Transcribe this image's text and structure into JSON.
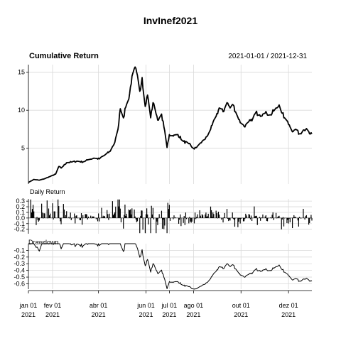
{
  "chart_data": {
    "type": "line",
    "title": "InvInef2021",
    "date_range": "2021-01-01 / 2021-12-31",
    "x_labels": [
      {
        "date": "2021-01-01",
        "label": "jan 01",
        "year": "2021"
      },
      {
        "date": "2021-02-01",
        "label": "fev 01",
        "year": "2021"
      },
      {
        "date": "2021-04-01",
        "label": "abr 01",
        "year": "2021"
      },
      {
        "date": "2021-06-01",
        "label": "jun 01",
        "year": "2021"
      },
      {
        "date": "2021-07-01",
        "label": "jul 01",
        "year": "2021"
      },
      {
        "date": "2021-08-01",
        "label": "ago 01",
        "year": "2021"
      },
      {
        "date": "2021-10-01",
        "label": "out 01",
        "year": "2021"
      },
      {
        "date": "2021-12-01",
        "label": "dez 01",
        "year": "2021"
      }
    ],
    "panels": [
      {
        "name": "Cumulative Return",
        "type": "line",
        "ylim": [
          0.3,
          16
        ],
        "yticks": [
          5,
          10,
          15
        ],
        "points": [
          [
            "2021-01-01",
            0.5
          ],
          [
            "2021-01-08",
            0.9
          ],
          [
            "2021-01-15",
            0.8
          ],
          [
            "2021-01-22",
            1.0
          ],
          [
            "2021-01-29",
            1.3
          ],
          [
            "2021-02-05",
            1.6
          ],
          [
            "2021-02-09",
            2.6
          ],
          [
            "2021-02-12",
            2.4
          ],
          [
            "2021-02-19",
            3.1
          ],
          [
            "2021-02-26",
            3.2
          ],
          [
            "2021-03-05",
            3.3
          ],
          [
            "2021-03-12",
            3.2
          ],
          [
            "2021-03-19",
            3.5
          ],
          [
            "2021-03-26",
            3.7
          ],
          [
            "2021-04-02",
            3.6
          ],
          [
            "2021-04-09",
            4.1
          ],
          [
            "2021-04-16",
            4.6
          ],
          [
            "2021-04-22",
            5.8
          ],
          [
            "2021-04-26",
            7.5
          ],
          [
            "2021-04-29",
            10.2
          ],
          [
            "2021-05-03",
            9.0
          ],
          [
            "2021-05-06",
            10.4
          ],
          [
            "2021-05-10",
            11.5
          ],
          [
            "2021-05-14",
            14.5
          ],
          [
            "2021-05-17",
            15.5
          ],
          [
            "2021-05-20",
            15.0
          ],
          [
            "2021-05-24",
            12.5
          ],
          [
            "2021-05-27",
            14.3
          ],
          [
            "2021-05-31",
            10.5
          ],
          [
            "2021-06-03",
            12.0
          ],
          [
            "2021-06-07",
            9.0
          ],
          [
            "2021-06-10",
            11.0
          ],
          [
            "2021-06-14",
            9.5
          ],
          [
            "2021-06-17",
            8.7
          ],
          [
            "2021-06-21",
            9.5
          ],
          [
            "2021-06-24",
            7.8
          ],
          [
            "2021-06-28",
            5.1
          ],
          [
            "2021-07-01",
            6.8
          ],
          [
            "2021-07-06",
            6.6
          ],
          [
            "2021-07-12",
            6.8
          ],
          [
            "2021-07-19",
            5.9
          ],
          [
            "2021-07-26",
            5.6
          ],
          [
            "2021-08-02",
            4.9
          ],
          [
            "2021-08-09",
            5.6
          ],
          [
            "2021-08-16",
            6.2
          ],
          [
            "2021-08-23",
            7.5
          ],
          [
            "2021-08-30",
            9.2
          ],
          [
            "2021-09-03",
            10.3
          ],
          [
            "2021-09-08",
            9.8
          ],
          [
            "2021-09-13",
            11.0
          ],
          [
            "2021-09-17",
            10.3
          ],
          [
            "2021-09-21",
            10.7
          ],
          [
            "2021-09-24",
            9.8
          ],
          [
            "2021-09-28",
            8.8
          ],
          [
            "2021-10-01",
            8.3
          ],
          [
            "2021-10-06",
            7.8
          ],
          [
            "2021-10-11",
            8.5
          ],
          [
            "2021-10-15",
            8.6
          ],
          [
            "2021-10-20",
            9.7
          ],
          [
            "2021-10-25",
            9.4
          ],
          [
            "2021-10-29",
            9.5
          ],
          [
            "2021-11-03",
            9.6
          ],
          [
            "2021-11-08",
            9.4
          ],
          [
            "2021-11-12",
            9.9
          ],
          [
            "2021-11-16",
            10.3
          ],
          [
            "2021-11-19",
            10.7
          ],
          [
            "2021-11-23",
            9.6
          ],
          [
            "2021-11-26",
            9.0
          ],
          [
            "2021-11-30",
            8.5
          ],
          [
            "2021-12-03",
            7.8
          ],
          [
            "2021-12-07",
            7.2
          ],
          [
            "2021-12-10",
            7.5
          ],
          [
            "2021-12-15",
            6.9
          ],
          [
            "2021-12-20",
            7.4
          ],
          [
            "2021-12-24",
            7.6
          ],
          [
            "2021-12-28",
            6.9
          ],
          [
            "2021-12-31",
            6.9
          ]
        ]
      },
      {
        "name": "Daily Return",
        "type": "bar",
        "ylim": [
          -0.28,
          0.34
        ],
        "yticks": [
          0.3,
          0.2,
          0.1,
          0.0,
          -0.1,
          -0.2
        ],
        "yticklabels": [
          "0.3",
          "0.2",
          "0.1",
          "0.0",
          "-0.1",
          "-0.2"
        ]
      },
      {
        "name": "Drawdown",
        "type": "line",
        "ylim": [
          -0.68,
          0.0
        ],
        "yticks": [
          -0.1,
          -0.2,
          -0.3,
          -0.4,
          -0.5,
          -0.6
        ],
        "yticklabels": [
          "-0.1",
          "-0.2",
          "-0.3",
          "-0.4",
          "-0.5",
          "-0.6"
        ]
      }
    ]
  }
}
